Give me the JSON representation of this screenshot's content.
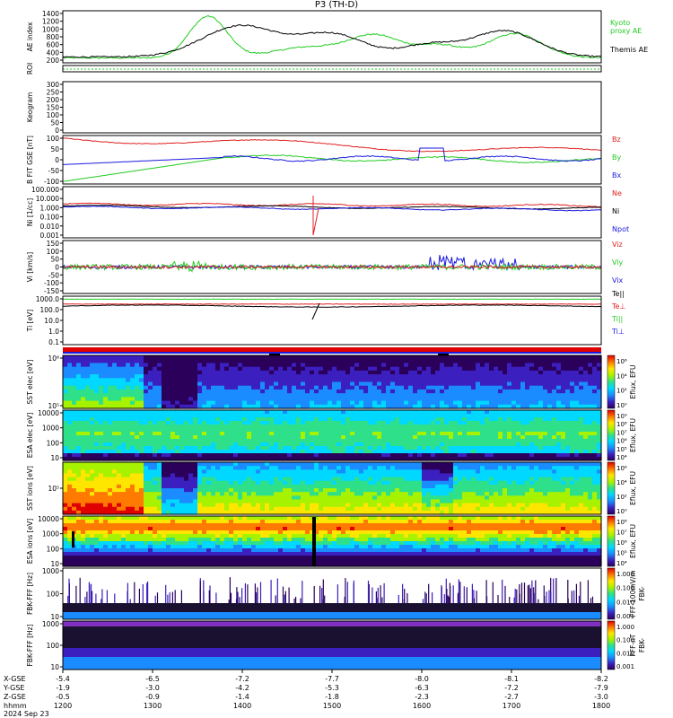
{
  "title": "P3 (TH-D)",
  "time_axis": {
    "tick_labels": [
      "1200",
      "1300",
      "1400",
      "1500",
      "1600",
      "1700",
      "1800"
    ],
    "range_minutes": [
      0,
      360
    ]
  },
  "orbit": {
    "rows": [
      {
        "label": "X-GSE",
        "values": [
          "-5.4",
          "-6.5",
          "-7.2",
          "-7.7",
          "-8.0",
          "-8.1",
          "-8.2"
        ]
      },
      {
        "label": "Y-GSE",
        "values": [
          "-1.9",
          "-3.0",
          "-4.2",
          "-5.3",
          "-6.3",
          "-7.2",
          "-7.9"
        ]
      },
      {
        "label": "Z-GSE",
        "values": [
          "-0.5",
          "-0.9",
          "-1.4",
          "-1.8",
          "-2.3",
          "-2.7",
          "-3.0"
        ]
      }
    ],
    "hhmm_label": "hhmm",
    "date_label": "2024 Sep 23"
  },
  "panels": {
    "ae": {
      "ylabel": "AE index",
      "ticks": [
        "200",
        "400",
        "600",
        "800",
        "1000",
        "1200",
        "1400"
      ],
      "legend_kyoto": "Kyoto",
      "legend_proxy": "proxy AE",
      "legend_themis": "Themis AE",
      "color_kyoto": "#22cc22",
      "color_themis": "#000000"
    },
    "roi": {
      "ylabel": "ROI"
    },
    "keogram": {
      "ylabel": "Keogram",
      "ticks": [
        "0",
        "50",
        "100",
        "150",
        "200",
        "250",
        "300"
      ]
    },
    "bfield": {
      "ylabel": "B FIT GSE [nT]",
      "ticks": [
        "100",
        "50",
        "0",
        "-50",
        "-100"
      ],
      "legend": [
        {
          "text": "Bz",
          "color": "#e02020"
        },
        {
          "text": "By",
          "color": "#22cc22"
        },
        {
          "text": "Bx",
          "color": "#1a1ae0"
        }
      ]
    },
    "density": {
      "ylabel": "Ni [1/cc]",
      "ticks": [
        "100.000",
        "10.000",
        "1.000",
        "0.100",
        "0.010",
        "0.001"
      ],
      "legend": [
        {
          "text": "Ne",
          "color": "#e02020"
        },
        {
          "text": "Ni",
          "color": "#000000"
        },
        {
          "text": "Npot",
          "color": "#1a1ae0"
        }
      ]
    },
    "velocity": {
      "ylabel": "Vi [km/s]",
      "ticks": [
        "150",
        "100",
        "50",
        "0",
        "-50",
        "-100",
        "-150"
      ],
      "legend": [
        {
          "text": "Viz",
          "color": "#e02020"
        },
        {
          "text": "Viy",
          "color": "#22cc22"
        },
        {
          "text": "Vix",
          "color": "#1a1ae0"
        }
      ]
    },
    "temp": {
      "ylabel": "Ti [eV]",
      "ticks": [
        "1000.0",
        "100.0",
        "10.0",
        "1.0",
        "0.1"
      ],
      "legend": [
        {
          "text": "Te||",
          "color": "#000000"
        },
        {
          "text": "Te⊥",
          "color": "#e02020"
        },
        {
          "text": "Ti||",
          "color": "#22cc22"
        },
        {
          "text": "Ti⊥",
          "color": "#1a1ae0"
        }
      ]
    },
    "sst_e": {
      "ylabel": "SST elec [eV]",
      "ticks": [
        "10⁶",
        "10⁵"
      ],
      "cbar": "Eflux, EFU",
      "cticks": [
        "10⁶",
        "10⁴",
        "10²",
        "10⁰"
      ]
    },
    "esa_e": {
      "ylabel": "ESA elec [eV]",
      "ticks": [
        "10000",
        "1000",
        "100",
        "10"
      ],
      "cbar": "Eflux, EFU",
      "cticks": [
        "10⁹",
        "10⁸",
        "10⁷",
        "10⁶",
        "10⁵",
        "10⁴"
      ]
    },
    "sst_i": {
      "ylabel": "SST ions [eV]",
      "ticks": [
        "10⁵"
      ],
      "cbar": "Eflux, EFU",
      "cticks": [
        "10⁶",
        "10⁴",
        "10²",
        "10⁰"
      ]
    },
    "esa_i": {
      "ylabel": "ESA ions [eV]",
      "ticks": [
        "10000",
        "1000",
        "100",
        "10"
      ],
      "cbar": "Eflux, EFU",
      "cticks": [
        "10⁸",
        "10⁷",
        "10⁶",
        "10⁵",
        "10⁴"
      ]
    },
    "fbk_e": {
      "ylabel": "FBK-FFF [Hz]",
      "ticks": [
        "1000",
        "100",
        "10"
      ],
      "cbar": "FFF-100mV/m",
      "cbar2": "FBK-",
      "cticks": [
        "1.000",
        "0.100",
        "0.010",
        "0.001"
      ]
    },
    "fbk_b": {
      "ylabel": "FBK-FFF [Hz]",
      "ticks": [
        "1000",
        "100",
        "10"
      ],
      "cbar": "FFF-nT",
      "cbar2": "FBK-",
      "cticks": [
        "1.000",
        "0.100",
        "0.010",
        "0.001"
      ]
    }
  }
}
